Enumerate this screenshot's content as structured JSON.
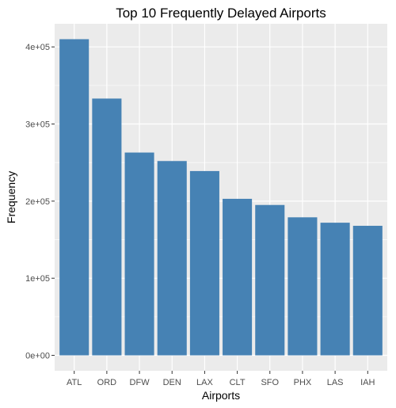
{
  "chart_data": {
    "type": "bar",
    "title": "Top 10 Frequently Delayed Airports",
    "xlabel": "Airports",
    "ylabel": "Frequency",
    "categories": [
      "ATL",
      "ORD",
      "DFW",
      "DEN",
      "LAX",
      "CLT",
      "SFO",
      "PHX",
      "LAS",
      "IAH"
    ],
    "values": [
      410000,
      333000,
      263000,
      252000,
      239000,
      203000,
      195000,
      179000,
      172000,
      168000
    ],
    "yticks": [
      0,
      100000,
      200000,
      300000,
      400000
    ],
    "ytick_labels": [
      "0e+00",
      "1e+05",
      "2e+05",
      "3e+05",
      "4e+05"
    ],
    "ylim": [
      -20000,
      430000
    ],
    "grid": true,
    "bar_color": "#4682B4",
    "panel_background": "#EBEBEB",
    "grid_color": "#FFFFFF"
  }
}
